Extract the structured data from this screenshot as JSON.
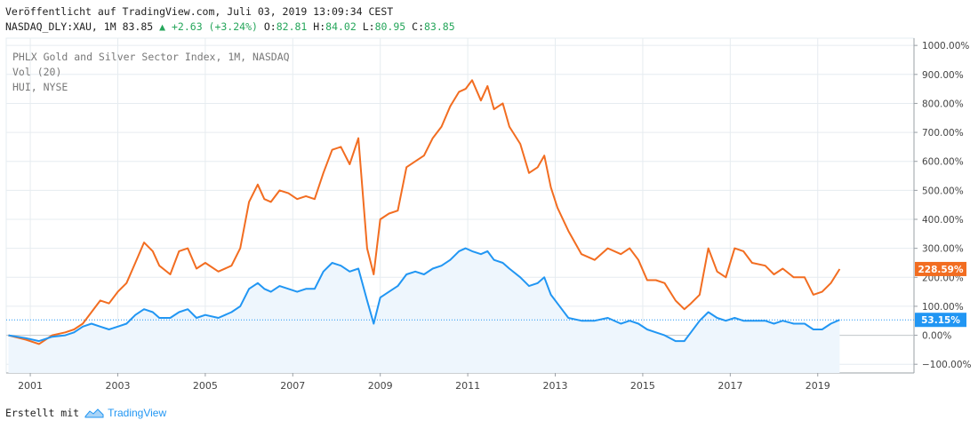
{
  "header": {
    "published": "Veröffentlicht auf TradingView.com, Juli 03, 2019 13:09:34 CEST",
    "symbol": "NASDAQ_DLY:XAU, 1M",
    "last": "83.85",
    "change": "+2.63 (+3.24%)",
    "o_label": "O:",
    "o_value": "82.81",
    "h_label": "H:",
    "h_value": "84.02",
    "l_label": "L:",
    "l_value": "80.95",
    "c_label": "C:",
    "c_value": "83.85"
  },
  "legend": {
    "line1": "PHLX Gold and Silver Sector Index, 1M, NASDAQ",
    "line2": "Vol (20)",
    "line3": "HUI, NYSE"
  },
  "footer": {
    "made_with": "Erstellt mit",
    "brand": "TradingView"
  },
  "colors": {
    "hui": "#f26d21",
    "xau": "#2196f3",
    "xau_fill": "#eef6fd",
    "grid": "#e6ecf0",
    "axis": "#9aa0a6"
  },
  "chart_data": {
    "type": "line",
    "title": "",
    "xlabel": "",
    "ylabel": "",
    "x_ticks": [
      "2001",
      "2003",
      "2005",
      "2007",
      "2009",
      "2011",
      "2013",
      "2015",
      "2017",
      "2019"
    ],
    "y_ticks": [
      "1000.00%",
      "900.00%",
      "800.00%",
      "700.00%",
      "600.00%",
      "500.00%",
      "400.00%",
      "300.00%",
      "200.00%",
      "100.00%",
      "0.00%",
      "−100.00%"
    ],
    "ylim": [
      -130,
      1025
    ],
    "xlim": [
      2000.45,
      2021.2
    ],
    "last_labels": {
      "hui": "228.59%",
      "xau": "53.15%"
    },
    "series": [
      {
        "name": "HUI, NYSE",
        "x": [
          2000.5,
          2000.9,
          2001.2,
          2001.5,
          2001.8,
          2002.0,
          2002.2,
          2002.4,
          2002.6,
          2002.8,
          2003.0,
          2003.2,
          2003.4,
          2003.6,
          2003.8,
          2003.95,
          2004.2,
          2004.4,
          2004.6,
          2004.8,
          2005.0,
          2005.3,
          2005.6,
          2005.8,
          2006.0,
          2006.2,
          2006.35,
          2006.5,
          2006.7,
          2006.9,
          2007.1,
          2007.3,
          2007.5,
          2007.7,
          2007.9,
          2008.1,
          2008.3,
          2008.5,
          2008.7,
          2008.85,
          2009.0,
          2009.2,
          2009.4,
          2009.6,
          2009.8,
          2010.0,
          2010.2,
          2010.4,
          2010.6,
          2010.8,
          2010.95,
          2011.1,
          2011.3,
          2011.45,
          2011.6,
          2011.8,
          2011.95,
          2012.2,
          2012.4,
          2012.6,
          2012.75,
          2012.9,
          2013.05,
          2013.3,
          2013.6,
          2013.9,
          2014.2,
          2014.5,
          2014.7,
          2014.9,
          2015.1,
          2015.3,
          2015.5,
          2015.75,
          2015.95,
          2016.1,
          2016.3,
          2016.5,
          2016.7,
          2016.9,
          2017.1,
          2017.3,
          2017.5,
          2017.8,
          2018.0,
          2018.2,
          2018.45,
          2018.7,
          2018.9,
          2019.1,
          2019.3,
          2019.5
        ],
        "values": [
          0,
          -15,
          -30,
          0,
          10,
          20,
          40,
          80,
          120,
          110,
          150,
          180,
          250,
          320,
          290,
          240,
          210,
          290,
          300,
          230,
          250,
          220,
          240,
          300,
          460,
          520,
          470,
          460,
          500,
          490,
          470,
          480,
          470,
          560,
          640,
          650,
          590,
          680,
          300,
          210,
          400,
          420,
          430,
          580,
          600,
          620,
          680,
          720,
          790,
          840,
          850,
          880,
          810,
          860,
          780,
          800,
          720,
          660,
          560,
          580,
          620,
          510,
          440,
          360,
          280,
          260,
          300,
          280,
          300,
          260,
          190,
          190,
          180,
          120,
          90,
          110,
          140,
          300,
          220,
          200,
          300,
          290,
          250,
          240,
          210,
          230,
          200,
          200,
          140,
          150,
          180,
          228.59
        ]
      },
      {
        "name": "PHLX Gold and Silver Sector Index",
        "x": [
          2000.5,
          2000.9,
          2001.2,
          2001.5,
          2001.8,
          2002.0,
          2002.2,
          2002.4,
          2002.6,
          2002.8,
          2003.0,
          2003.2,
          2003.4,
          2003.6,
          2003.8,
          2003.95,
          2004.2,
          2004.4,
          2004.6,
          2004.8,
          2005.0,
          2005.3,
          2005.6,
          2005.8,
          2006.0,
          2006.2,
          2006.35,
          2006.5,
          2006.7,
          2006.9,
          2007.1,
          2007.3,
          2007.5,
          2007.7,
          2007.9,
          2008.1,
          2008.3,
          2008.5,
          2008.7,
          2008.85,
          2009.0,
          2009.2,
          2009.4,
          2009.6,
          2009.8,
          2010.0,
          2010.2,
          2010.4,
          2010.6,
          2010.8,
          2010.95,
          2011.1,
          2011.3,
          2011.45,
          2011.6,
          2011.8,
          2011.95,
          2012.2,
          2012.4,
          2012.6,
          2012.75,
          2012.9,
          2013.05,
          2013.3,
          2013.6,
          2013.9,
          2014.2,
          2014.5,
          2014.7,
          2014.9,
          2015.1,
          2015.3,
          2015.5,
          2015.75,
          2015.95,
          2016.1,
          2016.3,
          2016.5,
          2016.7,
          2016.9,
          2017.1,
          2017.3,
          2017.5,
          2017.8,
          2018.0,
          2018.2,
          2018.45,
          2018.7,
          2018.9,
          2019.1,
          2019.3,
          2019.5
        ],
        "values": [
          0,
          -10,
          -20,
          -5,
          0,
          10,
          30,
          40,
          30,
          20,
          30,
          40,
          70,
          90,
          80,
          60,
          60,
          80,
          90,
          60,
          70,
          60,
          80,
          100,
          160,
          180,
          160,
          150,
          170,
          160,
          150,
          160,
          160,
          220,
          250,
          240,
          220,
          230,
          120,
          40,
          130,
          150,
          170,
          210,
          220,
          210,
          230,
          240,
          260,
          290,
          300,
          290,
          280,
          290,
          260,
          250,
          230,
          200,
          170,
          180,
          200,
          140,
          110,
          60,
          50,
          50,
          60,
          40,
          50,
          40,
          20,
          10,
          0,
          -20,
          -20,
          10,
          50,
          80,
          60,
          50,
          60,
          50,
          50,
          50,
          40,
          50,
          40,
          40,
          20,
          20,
          40,
          53.15
        ]
      }
    ]
  }
}
